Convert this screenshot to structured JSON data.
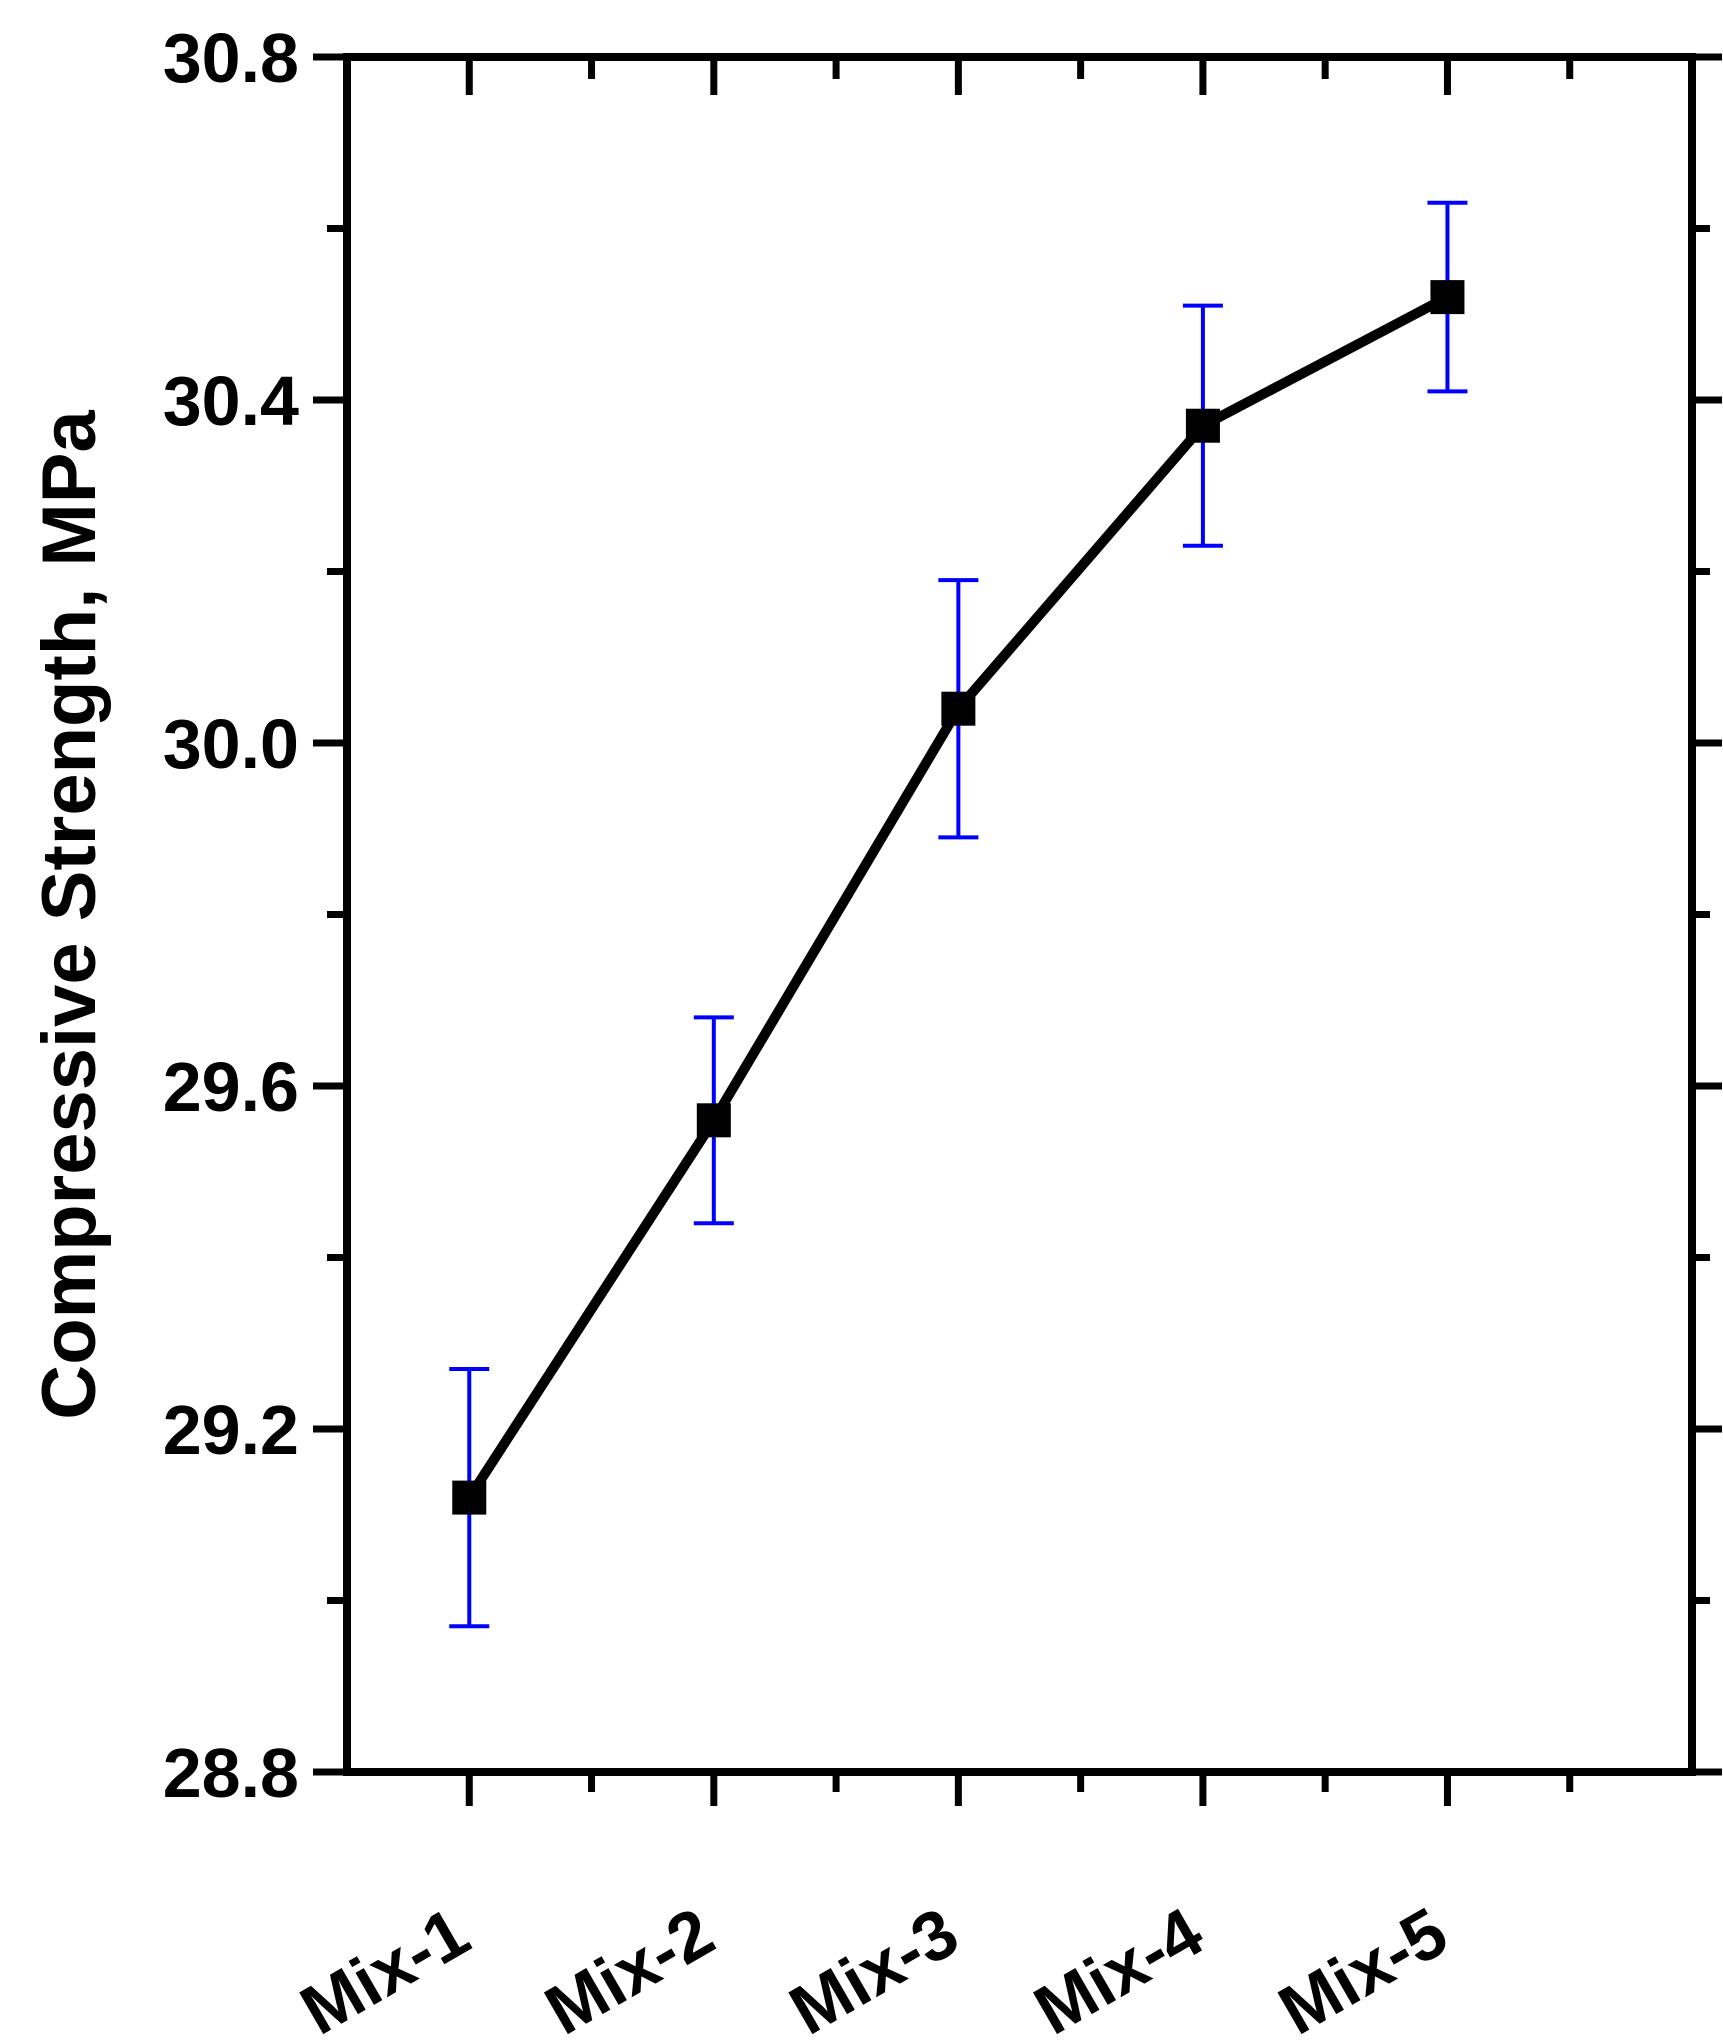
{
  "chart_data": {
    "type": "line",
    "title": "",
    "xlabel": "",
    "ylabel": "Compressive Strength, MPa",
    "categories": [
      "Mix-1",
      "Mix-2",
      "Mix-3",
      "Mix-4",
      "Mix-5"
    ],
    "series": [
      {
        "values": [
          29.12,
          29.56,
          30.04,
          30.37,
          30.52
        ],
        "error": [
          0.15,
          0.12,
          0.15,
          0.14,
          0.11
        ]
      }
    ],
    "ylim": [
      28.8,
      30.8
    ],
    "yticks": [
      "28.8",
      "29.2",
      "29.6",
      "30.0",
      "30.4",
      "30.8"
    ],
    "grid": false,
    "legend": "none",
    "colors": {
      "line": "#000000",
      "marker": "#000000",
      "error_bar": "#0000ff"
    }
  }
}
